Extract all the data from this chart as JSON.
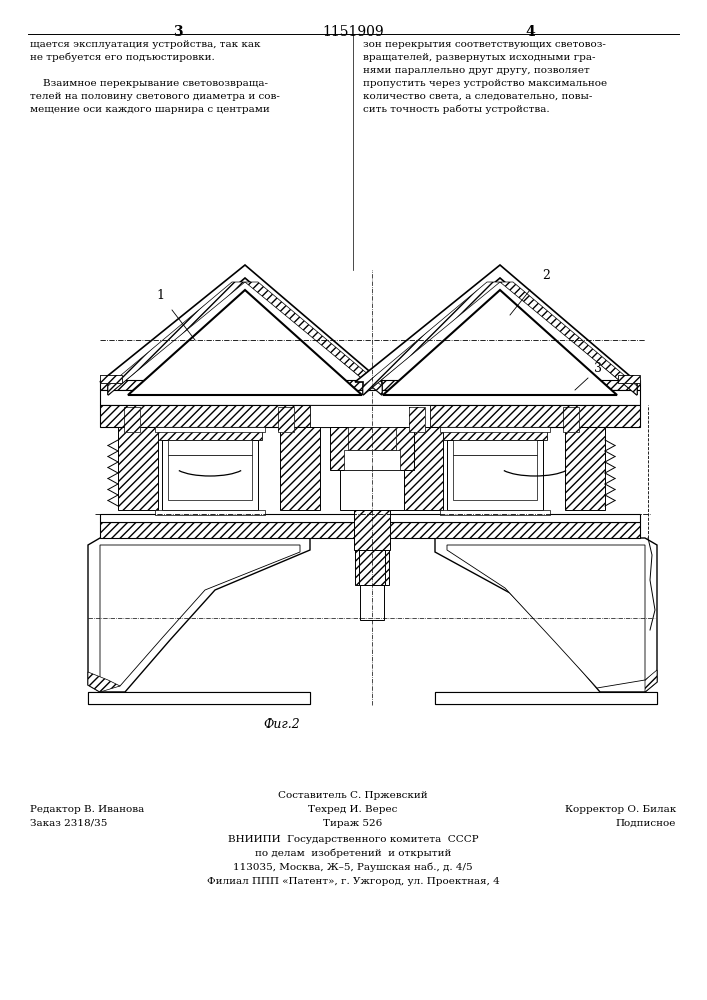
{
  "page_number_center": "1151909",
  "page_col_left": "3",
  "page_col_right": "4",
  "fig_label": "Фиг.2",
  "footer_left_editor": "Редактор В. Иванова",
  "footer_left_order": "Заказ 2318/35",
  "footer_center_composer": "Составитель С. Пржевский",
  "footer_center_techred": "Техред И. Верес",
  "footer_center_tirazh": "Тираж 526",
  "footer_center_org": "ВНИИПИ  Государственного комитета  СССР",
  "footer_center_dept": "по делам  изобретений  и открытий",
  "footer_center_addr": "113035, Москва, Ж–5, Раушская наб., д. 4/5",
  "footer_center_filial": "Филиал ППП «Патент», г. Ужгород, ул. Проектная, 4",
  "footer_right_corrector": "Корректор О. Билак",
  "footer_right_podpisnoe": "Подписное",
  "left_col_lines": [
    "щается эксплуатация устройства, так как",
    "не требуется его подъюстировки.",
    "",
    "    Взаимное перекрывание световозвраща-",
    "телей на половину светового диаметра и сов-",
    "мещение оси каждого шарнира с центрами"
  ],
  "right_col_lines": [
    "зон перекрытия соответствующих световоз-",
    "вращателей, развернутых исходными гра-",
    "нями параллельно друг другу, позволяет",
    "пропустить через устройство максимальное",
    "количество света, а следовательно, повы-",
    "сить точность работы устройства."
  ]
}
